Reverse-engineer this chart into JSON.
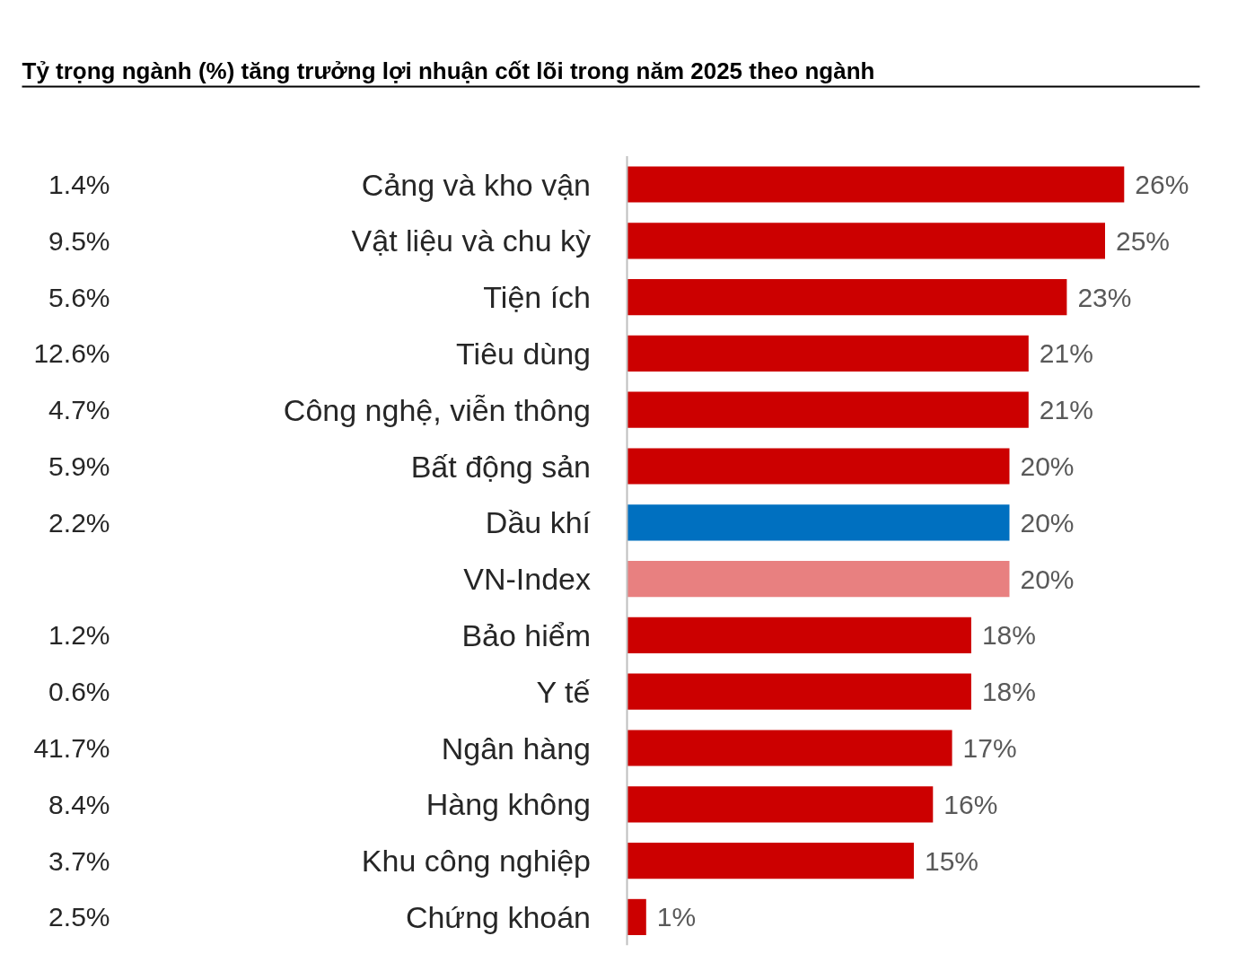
{
  "chart_data": {
    "type": "bar",
    "orientation": "horizontal",
    "title": "Tỷ trọng ngành (%) tăng trưởng lợi nhuận cốt lõi trong năm 2025 theo ngành",
    "categories": [
      "Cảng và kho vận",
      "Vật liệu và chu kỳ",
      "Tiện ích",
      "Tiêu dùng",
      "Công nghệ, viễn thông",
      "Bất động sản",
      "Dầu khí",
      "VN-Index",
      "Bảo hiểm",
      "Y tế",
      "Ngân hàng",
      "Hàng không",
      "Khu công nghiệp",
      "Chứng khoán"
    ],
    "values": [
      26,
      25,
      23,
      21,
      21,
      20,
      20,
      20,
      18,
      18,
      17,
      16,
      15,
      1
    ],
    "colors": [
      "#cc0000",
      "#cc0000",
      "#cc0000",
      "#cc0000",
      "#cc0000",
      "#cc0000",
      "#0070c0",
      "#e88080",
      "#cc0000",
      "#cc0000",
      "#cc0000",
      "#cc0000",
      "#cc0000",
      "#cc0000"
    ],
    "value_labels": [
      "26%",
      "25%",
      "23%",
      "21%",
      "21%",
      "20%",
      "20%",
      "20%",
      "18%",
      "18%",
      "17%",
      "16%",
      "15%",
      "1%"
    ],
    "y2_categories": [
      "1.4%",
      "9.5%",
      "5.6%",
      "12.6%",
      "4.7%",
      "5.9%",
      "2.2%",
      null,
      "1.2%",
      "0.6%",
      "41.7%",
      "8.4%",
      "3.7%",
      "2.5%"
    ],
    "grid": false
  }
}
